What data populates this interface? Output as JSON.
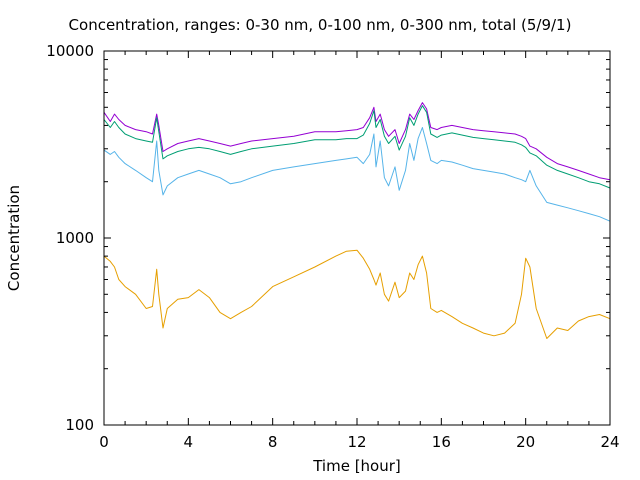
{
  "chart_data": {
    "type": "line",
    "title": "Concentration, ranges: 0-30 nm, 0-100 nm, 0-300 nm, total (5/9/1)",
    "xlabel": "Time [hour]",
    "ylabel": "Concentration",
    "xlim": [
      0,
      24
    ],
    "ylim": [
      100,
      10000
    ],
    "yscale": "log",
    "xticks": [
      0,
      4,
      8,
      12,
      16,
      20,
      24
    ],
    "yticks": [
      100,
      1000,
      10000
    ],
    "xtick_labels": [
      "0",
      "4",
      "8",
      "12",
      "16",
      "20",
      "24"
    ],
    "ytick_labels": [
      "100",
      "1000",
      "10000"
    ],
    "grid": false,
    "legend": "none",
    "series": [
      {
        "color": "#9400d3",
        "x": [
          0,
          0.3,
          0.5,
          0.7,
          1,
          1.5,
          2,
          2.3,
          2.5,
          2.6,
          2.8,
          3,
          3.5,
          4,
          4.5,
          5,
          5.5,
          6,
          6.5,
          7,
          8,
          9,
          10,
          11,
          11.5,
          12,
          12.3,
          12.6,
          12.8,
          12.9,
          13.1,
          13.3,
          13.5,
          13.8,
          14,
          14.3,
          14.5,
          14.7,
          14.9,
          15.1,
          15.3,
          15.5,
          15.8,
          16,
          16.5,
          17,
          17.5,
          18,
          18.5,
          19,
          19.5,
          19.8,
          20,
          20.2,
          20.5,
          21,
          21.5,
          22,
          22.5,
          23,
          23.5,
          24
        ],
        "values": [
          4700,
          4200,
          4600,
          4300,
          4000,
          3800,
          3700,
          3600,
          4600,
          4000,
          2900,
          3000,
          3200,
          3300,
          3400,
          3300,
          3200,
          3100,
          3200,
          3300,
          3400,
          3500,
          3700,
          3700,
          3750,
          3800,
          3900,
          4400,
          5000,
          4200,
          4600,
          3800,
          3500,
          3800,
          3200,
          3800,
          4600,
          4300,
          4800,
          5300,
          4900,
          3900,
          3800,
          3900,
          4000,
          3900,
          3800,
          3750,
          3700,
          3650,
          3600,
          3500,
          3400,
          3100,
          3000,
          2700,
          2500,
          2400,
          2300,
          2200,
          2100,
          2050
        ]
      },
      {
        "color": "#009e73",
        "x": [
          0,
          0.3,
          0.5,
          0.7,
          1,
          1.5,
          2,
          2.3,
          2.5,
          2.6,
          2.8,
          3,
          3.5,
          4,
          4.5,
          5,
          5.5,
          6,
          6.5,
          7,
          8,
          9,
          10,
          11,
          11.5,
          12,
          12.3,
          12.6,
          12.8,
          12.9,
          13.1,
          13.3,
          13.5,
          13.8,
          14,
          14.3,
          14.5,
          14.7,
          14.9,
          15.1,
          15.3,
          15.5,
          15.8,
          16,
          16.5,
          17,
          17.5,
          18,
          18.5,
          19,
          19.5,
          19.8,
          20,
          20.2,
          20.5,
          21,
          21.5,
          22,
          22.5,
          23,
          23.5,
          24
        ],
        "values": [
          4300,
          3900,
          4200,
          3900,
          3600,
          3400,
          3300,
          3250,
          4400,
          3700,
          2650,
          2750,
          2900,
          3000,
          3050,
          3000,
          2900,
          2800,
          2900,
          3000,
          3100,
          3200,
          3350,
          3350,
          3400,
          3400,
          3550,
          4100,
          4800,
          3900,
          4300,
          3500,
          3200,
          3500,
          2950,
          3500,
          4400,
          4000,
          4600,
          5100,
          4700,
          3600,
          3450,
          3550,
          3650,
          3550,
          3450,
          3400,
          3350,
          3300,
          3250,
          3150,
          3050,
          2850,
          2750,
          2450,
          2300,
          2200,
          2100,
          2000,
          1950,
          1850
        ]
      },
      {
        "color": "#56b4e9",
        "x": [
          0,
          0.3,
          0.5,
          0.7,
          1,
          1.5,
          2,
          2.3,
          2.5,
          2.6,
          2.8,
          3,
          3.5,
          4,
          4.5,
          5,
          5.5,
          6,
          6.5,
          7,
          8,
          9,
          10,
          11,
          11.5,
          12,
          12.3,
          12.6,
          12.8,
          12.9,
          13.1,
          13.3,
          13.5,
          13.8,
          14,
          14.3,
          14.5,
          14.7,
          14.9,
          15.1,
          15.3,
          15.5,
          15.8,
          16,
          16.5,
          17,
          17.5,
          18,
          18.5,
          19,
          19.5,
          19.8,
          20,
          20.2,
          20.5,
          21,
          21.5,
          22,
          22.5,
          23,
          23.5,
          24
        ],
        "values": [
          2950,
          2800,
          2900,
          2700,
          2500,
          2300,
          2100,
          2000,
          3300,
          2300,
          1700,
          1900,
          2100,
          2200,
          2300,
          2200,
          2100,
          1950,
          2000,
          2100,
          2300,
          2400,
          2500,
          2600,
          2650,
          2700,
          2500,
          2800,
          3600,
          2400,
          3300,
          2100,
          1900,
          2400,
          1800,
          2300,
          3200,
          2600,
          3400,
          3900,
          3200,
          2600,
          2500,
          2600,
          2550,
          2450,
          2350,
          2300,
          2250,
          2200,
          2100,
          2050,
          2000,
          2300,
          1900,
          1550,
          1500,
          1450,
          1400,
          1350,
          1300,
          1230
        ]
      },
      {
        "color": "#e69f00",
        "x": [
          0,
          0.3,
          0.5,
          0.7,
          1,
          1.5,
          2,
          2.3,
          2.5,
          2.6,
          2.8,
          3,
          3.5,
          4,
          4.5,
          5,
          5.5,
          6,
          6.5,
          7,
          8,
          9,
          10,
          11,
          11.5,
          12,
          12.3,
          12.6,
          12.8,
          12.9,
          13.1,
          13.3,
          13.5,
          13.8,
          14,
          14.3,
          14.5,
          14.7,
          14.9,
          15.1,
          15.3,
          15.5,
          15.8,
          16,
          16.5,
          17,
          17.5,
          18,
          18.5,
          19,
          19.5,
          19.8,
          20,
          20.2,
          20.5,
          21,
          21.5,
          22,
          22.5,
          23,
          23.5,
          24
        ],
        "values": [
          800,
          750,
          700,
          600,
          550,
          500,
          420,
          430,
          680,
          500,
          330,
          420,
          470,
          480,
          530,
          480,
          400,
          370,
          400,
          430,
          550,
          620,
          700,
          800,
          850,
          860,
          780,
          680,
          600,
          560,
          650,
          500,
          460,
          580,
          480,
          520,
          650,
          600,
          720,
          800,
          650,
          420,
          400,
          410,
          380,
          350,
          330,
          310,
          300,
          310,
          350,
          500,
          780,
          700,
          420,
          290,
          330,
          320,
          360,
          380,
          390,
          370
        ]
      }
    ]
  }
}
